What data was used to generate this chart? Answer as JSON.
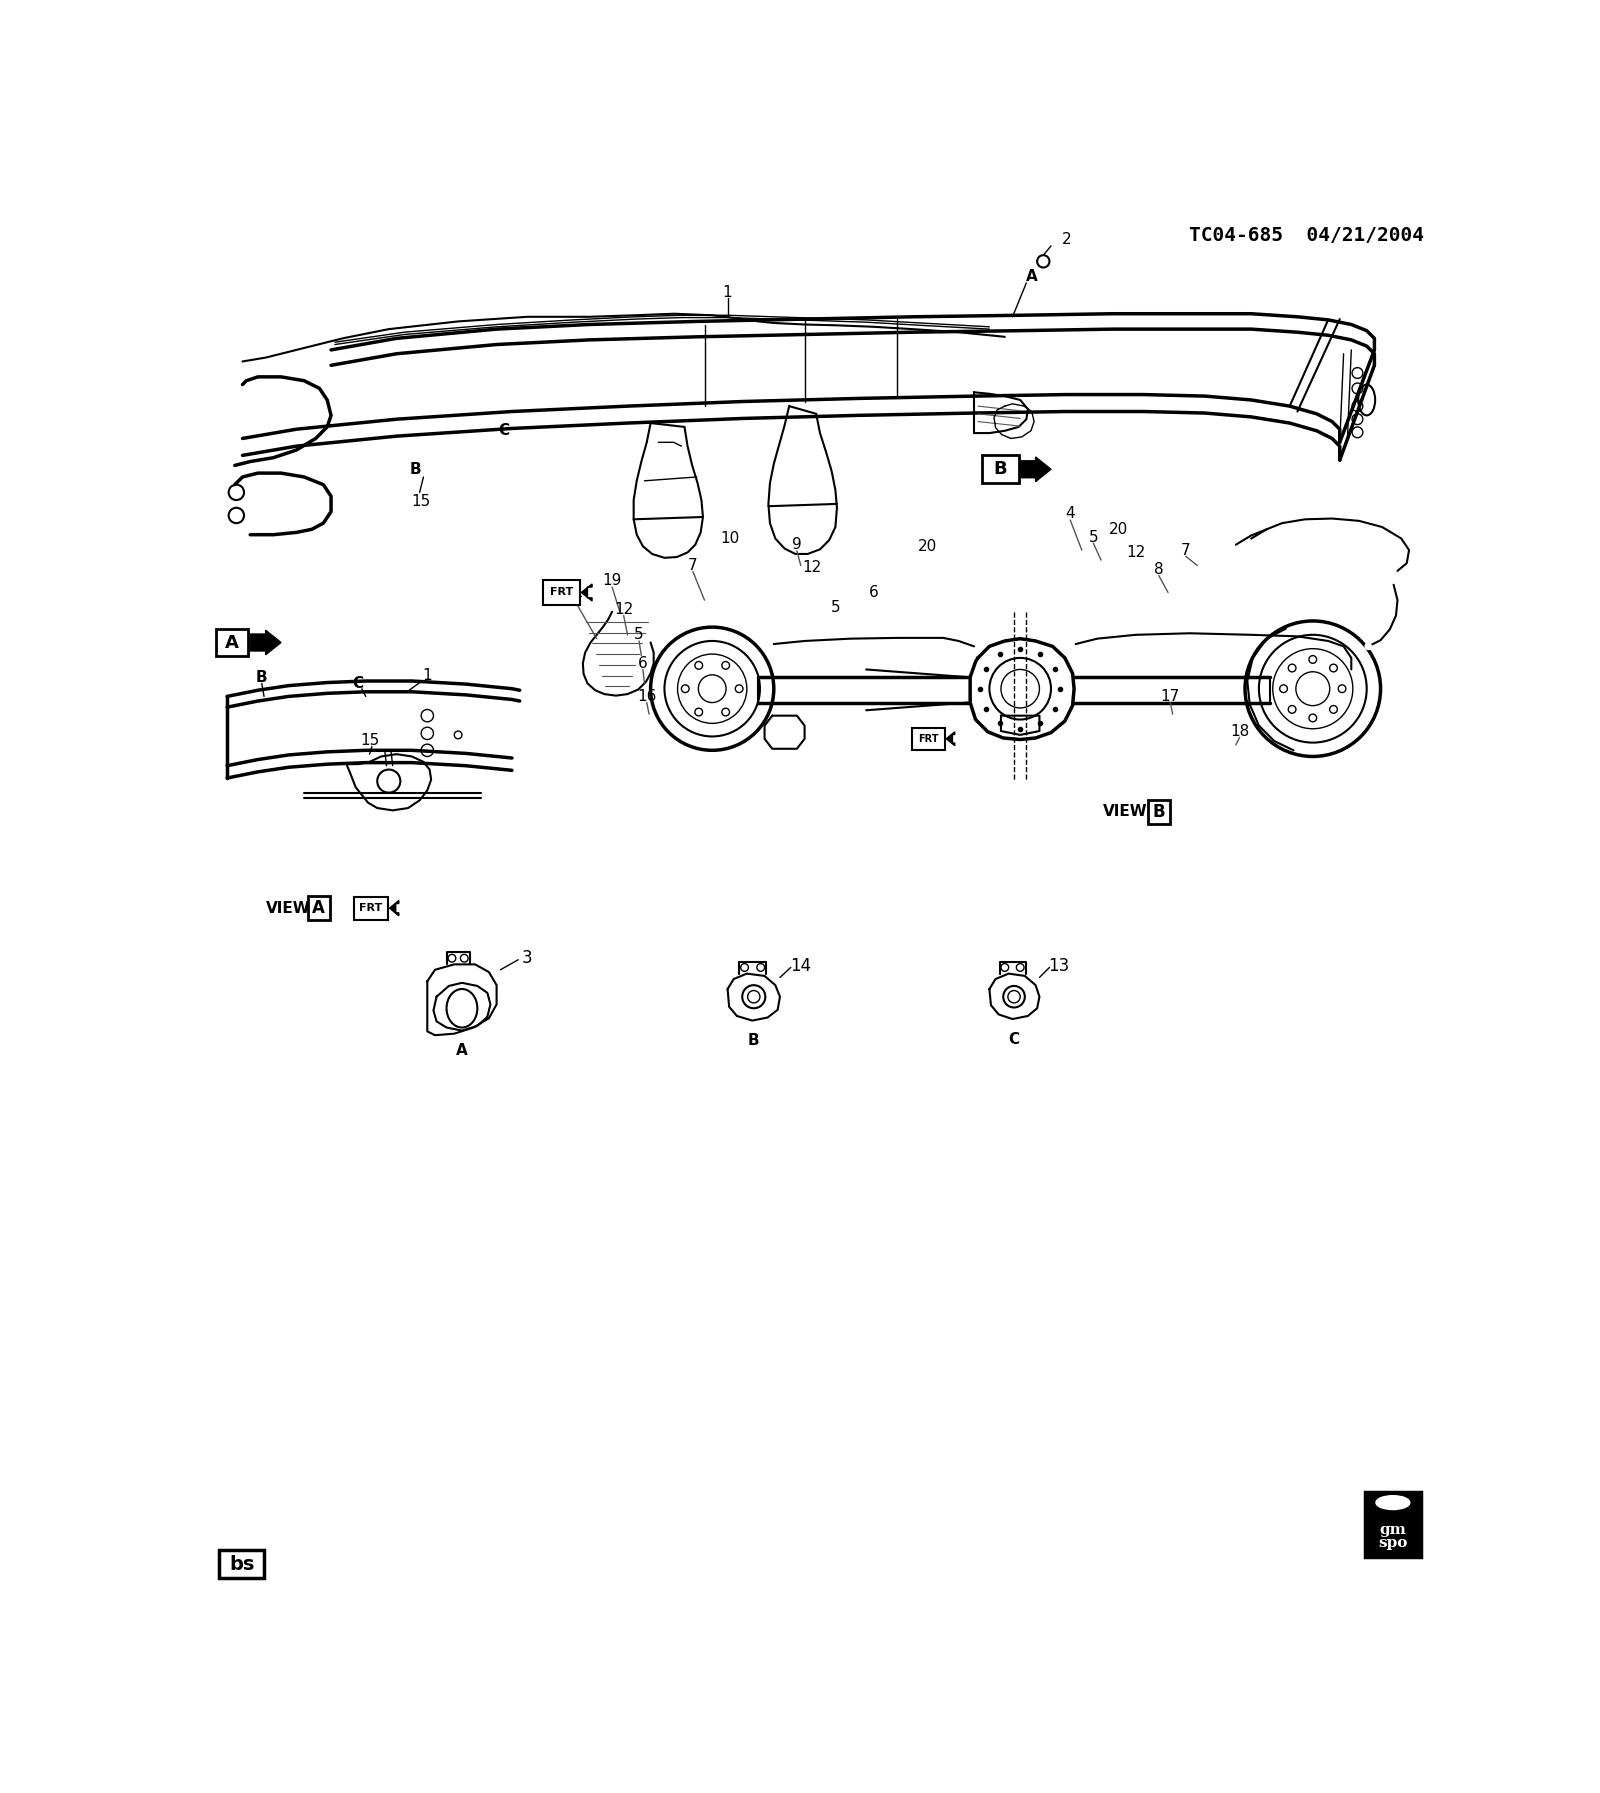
{
  "title": "TC04-685  04/21/2004",
  "background_color": "#ffffff",
  "line_color": "#000000",
  "fig_width": 16.0,
  "fig_height": 17.93,
  "dpi": 100,
  "bottom_left_label": "bs",
  "bottom_right_label_line1": "gm",
  "bottom_right_label_line2": "spo",
  "view_a_label": "VIEW",
  "view_b_label": "VIEW",
  "header_font": "monospace"
}
